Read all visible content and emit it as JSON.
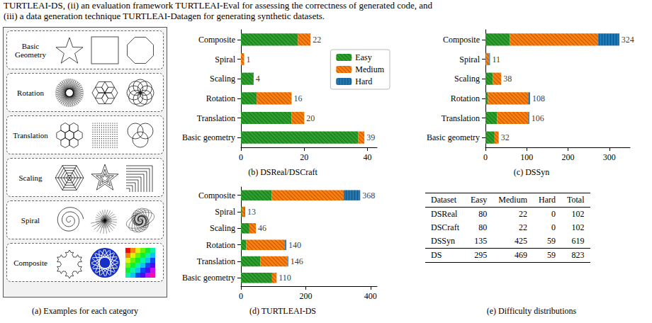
{
  "header": {
    "lines": [
      "TURTLEAI-DS, (ii) an evaluation framework TURTLEAI-Eval for assessing the correctness of generated code, and",
      "(iii) a data generation technique TURTLEAI-Datagen for generating synthetic datasets."
    ]
  },
  "panel_a": {
    "title": "(a) Examples for each category",
    "categories": [
      "Basic Geometry",
      "Rotation",
      "Translation",
      "Scaling",
      "Spiral",
      "Composite"
    ]
  },
  "chart_data": [
    {
      "type": "bar",
      "orientation": "horizontal",
      "stacked": true,
      "title": "(b) DSReal/DSCraft",
      "categories": [
        "Basic geometry",
        "Translation",
        "Rotation",
        "Scaling",
        "Spiral",
        "Composite"
      ],
      "series": [
        {
          "name": "Easy",
          "color": "#2ca02c",
          "values": [
            37,
            16,
            5,
            4,
            0,
            18
          ]
        },
        {
          "name": "Medium",
          "color": "#ff7f0e",
          "values": [
            2,
            4,
            11,
            0,
            1,
            4
          ]
        },
        {
          "name": "Hard",
          "color": "#1f77b4",
          "values": [
            0,
            0,
            0,
            0,
            0,
            0
          ]
        }
      ],
      "totals": [
        39,
        20,
        16,
        4,
        1,
        22
      ],
      "xlim": [
        0,
        43
      ],
      "xticks": [
        0,
        20,
        40
      ],
      "legend": "upper right"
    },
    {
      "type": "bar",
      "orientation": "horizontal",
      "stacked": true,
      "title": "(c) DSSyn",
      "categories": [
        "Basic geometry",
        "Translation",
        "Rotation",
        "Scaling",
        "Spiral",
        "Composite"
      ],
      "series": [
        {
          "name": "Easy",
          "color": "#2ca02c",
          "values": [
            22,
            28,
            6,
            18,
            2,
            59
          ]
        },
        {
          "name": "Medium",
          "color": "#ff7f0e",
          "values": [
            10,
            76,
            98,
            20,
            7,
            214
          ]
        },
        {
          "name": "Hard",
          "color": "#1f77b4",
          "values": [
            0,
            2,
            4,
            0,
            2,
            51
          ]
        }
      ],
      "totals": [
        32,
        106,
        108,
        38,
        11,
        324
      ],
      "xlim": [
        0,
        350
      ],
      "xticks": [
        0,
        100,
        200,
        300
      ]
    },
    {
      "type": "bar",
      "orientation": "horizontal",
      "stacked": true,
      "title": "(d) TURTLEAI-DS",
      "categories": [
        "Basic geometry",
        "Translation",
        "Rotation",
        "Scaling",
        "Spiral",
        "Composite"
      ],
      "series": [
        {
          "name": "Easy",
          "color": "#2ca02c",
          "values": [
            96,
            60,
            16,
            26,
            2,
            95
          ]
        },
        {
          "name": "Medium",
          "color": "#ff7f0e",
          "values": [
            14,
            84,
            120,
            20,
            9,
            222
          ]
        },
        {
          "name": "Hard",
          "color": "#1f77b4",
          "values": [
            0,
            2,
            4,
            0,
            2,
            51
          ]
        }
      ],
      "totals": [
        110,
        146,
        140,
        46,
        13,
        368
      ],
      "xlim": [
        0,
        420
      ],
      "xticks": [
        0,
        200,
        400
      ]
    }
  ],
  "table": {
    "title": "(e) Difficulty distributions",
    "columns": [
      "Dataset",
      "Easy",
      "Medium",
      "Hard",
      "Total"
    ],
    "rows": [
      [
        "DSReal",
        80,
        22,
        0,
        102
      ],
      [
        "DSCraft",
        80,
        22,
        0,
        102
      ],
      [
        "DSSyn",
        135,
        425,
        59,
        619
      ],
      [
        "DS",
        295,
        469,
        59,
        823
      ]
    ]
  }
}
